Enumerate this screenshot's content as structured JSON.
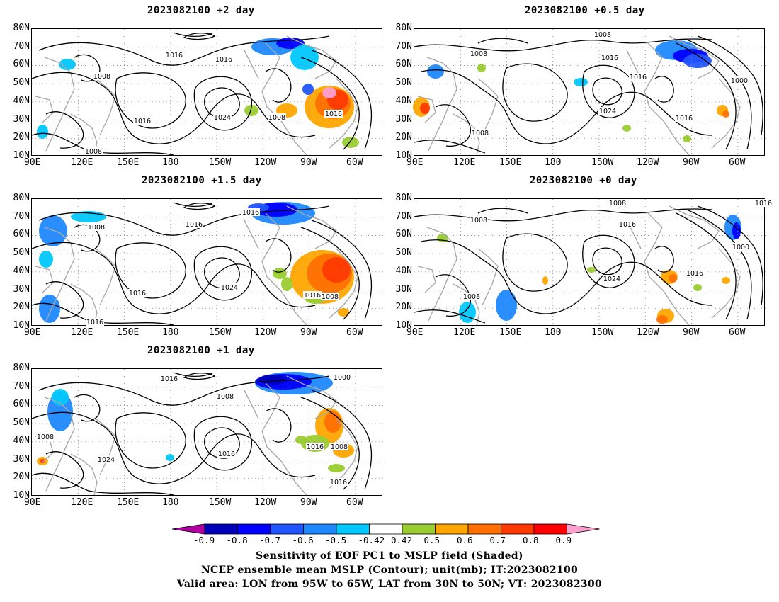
{
  "panels": [
    {
      "id": "p2",
      "title": "2023082100 +2 day"
    },
    {
      "id": "p05",
      "title": "2023082100 +0.5 day"
    },
    {
      "id": "p15",
      "title": "2023082100 +1.5 day"
    },
    {
      "id": "p0",
      "title": "2023082100 +0 day"
    },
    {
      "id": "p1",
      "title": "2023082100 +1 day"
    }
  ],
  "axes": {
    "lat_labels": [
      "80N",
      "70N",
      "60N",
      "50N",
      "40N",
      "30N",
      "20N",
      "10N"
    ],
    "lon_labels": [
      "90E",
      "120E",
      "150E",
      "180",
      "150W",
      "120W",
      "90W",
      "60W"
    ]
  },
  "contour_labels": {
    "p2": [
      "1016",
      "1016",
      "1008",
      "1016",
      "1024",
      "1008",
      "1016",
      "1008"
    ],
    "p05": [
      "1008",
      "1008",
      "1016",
      "1016",
      "1000",
      "1024",
      "1016",
      "1008"
    ],
    "p15": [
      "1016",
      "1008",
      "1016",
      "1016",
      "1024",
      "1016",
      "1008",
      "1016"
    ],
    "p0": [
      "1008",
      "1008",
      "1016",
      "1016",
      "1000",
      "1024",
      "1016",
      "1008"
    ],
    "p1": [
      "1008",
      "1000",
      "1016",
      "1008",
      "1024",
      "1016",
      "1016",
      "1008",
      "1016"
    ]
  },
  "colorbar": {
    "labels": [
      "-0.9",
      "-0.8",
      "-0.7",
      "-0.6",
      "-0.5",
      "-0.42",
      "0.42",
      "0.5",
      "0.6",
      "0.7",
      "0.8",
      "0.9"
    ],
    "colors": [
      "#0000b8",
      "#0000ff",
      "#2255ff",
      "#1e88ff",
      "#00c8ff",
      "#ffffff",
      "#9acd32",
      "#ffa500",
      "#ff7000",
      "#ff3a00",
      "#ff0000"
    ],
    "low_extend_color": "#b000a0",
    "high_extend_color": "#ff9fcf"
  },
  "caption": {
    "line1": "Sensitivity of EOF PC1 to MSLP field (Shaded)",
    "line2": "NCEP ensemble mean MSLP (Contour); unit(mb); IT:2023082100",
    "line3": "Valid area: LON from 95W to 65W, LAT from 30N to 50N; VT: 2023082300"
  }
}
